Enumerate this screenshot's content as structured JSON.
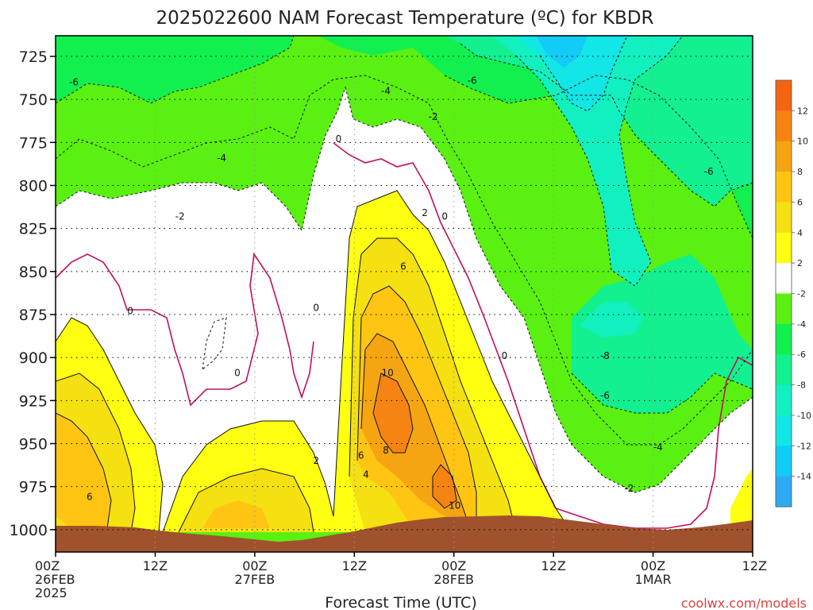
{
  "chart_data": {
    "type": "heatmap",
    "title": "2025022600 NAM Forecast Temperature (ºC) for KBDR",
    "xlabel": "Forecast Time (UTC)",
    "ylabel": "",
    "credit": "coolwx.com/models",
    "x_range_hours": [
      0,
      84
    ],
    "y_range_hpa": [
      1013,
      713
    ],
    "y_ticks": [
      725,
      750,
      775,
      800,
      825,
      850,
      875,
      900,
      925,
      950,
      975,
      1000
    ],
    "x_ticks": [
      {
        "hour": 0,
        "line1": "00Z",
        "line2": "26FEB",
        "line3": "2025"
      },
      {
        "hour": 12,
        "line1": "12Z",
        "line2": "",
        "line3": ""
      },
      {
        "hour": 24,
        "line1": "00Z",
        "line2": "27FEB",
        "line3": ""
      },
      {
        "hour": 36,
        "line1": "12Z",
        "line2": "",
        "line3": ""
      },
      {
        "hour": 48,
        "line1": "00Z",
        "line2": "28FEB",
        "line3": ""
      },
      {
        "hour": 60,
        "line1": "12Z",
        "line2": "",
        "line3": ""
      },
      {
        "hour": 72,
        "line1": "00Z",
        "line2": "1MAR",
        "line3": ""
      },
      {
        "hour": 84,
        "line1": "12Z",
        "line2": "",
        "line3": ""
      }
    ],
    "colorbar": {
      "bins": [
        {
          "lo": -16,
          "hi": -14,
          "color": "#2eaaf5"
        },
        {
          "lo": -14,
          "hi": -12,
          "color": "#12ccf5"
        },
        {
          "lo": -12,
          "hi": -10,
          "color": "#12e6e6"
        },
        {
          "lo": -10,
          "hi": -8,
          "color": "#12f0c0"
        },
        {
          "lo": -8,
          "hi": -6,
          "color": "#12f090"
        },
        {
          "lo": -6,
          "hi": -4,
          "color": "#12f050"
        },
        {
          "lo": -4,
          "hi": -2,
          "color": "#5af012"
        },
        {
          "lo": -2,
          "hi": 2,
          "color": "#ffffff"
        },
        {
          "lo": 2,
          "hi": 4,
          "color": "#ffff12"
        },
        {
          "lo": 4,
          "hi": 6,
          "color": "#f5e012"
        },
        {
          "lo": 6,
          "hi": 8,
          "color": "#ffc512"
        },
        {
          "lo": 8,
          "hi": 10,
          "color": "#f5a512"
        },
        {
          "lo": 10,
          "hi": 12,
          "color": "#f58412"
        },
        {
          "lo": 12,
          "hi": 14,
          "color": "#f56412"
        }
      ],
      "tick_labels": [
        "12",
        "10",
        "8",
        "6",
        "4",
        "2",
        "-2",
        "-4",
        "-6",
        "-8",
        "-10",
        "-12",
        "-14"
      ]
    },
    "ground_color": "#a0522d",
    "contour_labels": [
      {
        "text": "-6",
        "h": 2.2,
        "p": 740
      },
      {
        "text": "-4",
        "h": 39.8,
        "p": 745
      },
      {
        "text": "-6",
        "h": 50.2,
        "p": 739
      },
      {
        "text": "-2",
        "h": 45.5,
        "p": 760
      },
      {
        "text": "-4",
        "h": 20.0,
        "p": 784
      },
      {
        "text": "0",
        "h": 34.1,
        "p": 773
      },
      {
        "text": "-6",
        "h": 78.7,
        "p": 792
      },
      {
        "text": "-2",
        "h": 15.0,
        "p": 818
      },
      {
        "text": "2",
        "h": 44.5,
        "p": 816
      },
      {
        "text": "0",
        "h": 46.9,
        "p": 818
      },
      {
        "text": "6",
        "h": 41.9,
        "p": 847
      },
      {
        "text": "0",
        "h": 9.0,
        "p": 873
      },
      {
        "text": "0",
        "h": 31.4,
        "p": 871
      },
      {
        "text": "-8",
        "h": 66.2,
        "p": 899
      },
      {
        "text": "0",
        "h": 54.1,
        "p": 899
      },
      {
        "text": "10",
        "h": 40.0,
        "p": 909
      },
      {
        "text": "0",
        "h": 21.9,
        "p": 909
      },
      {
        "text": "-6",
        "h": 66.2,
        "p": 922
      },
      {
        "text": "6",
        "h": 36.8,
        "p": 957
      },
      {
        "text": "8",
        "h": 39.8,
        "p": 954
      },
      {
        "text": "2",
        "h": 31.4,
        "p": 960
      },
      {
        "text": "-4",
        "h": 72.6,
        "p": 952
      },
      {
        "text": "4",
        "h": 37.4,
        "p": 968
      },
      {
        "text": "-2",
        "h": 69.1,
        "p": 976
      },
      {
        "text": "6",
        "h": 4.1,
        "p": 981
      },
      {
        "text": "10",
        "h": 48.1,
        "p": 986
      }
    ]
  }
}
